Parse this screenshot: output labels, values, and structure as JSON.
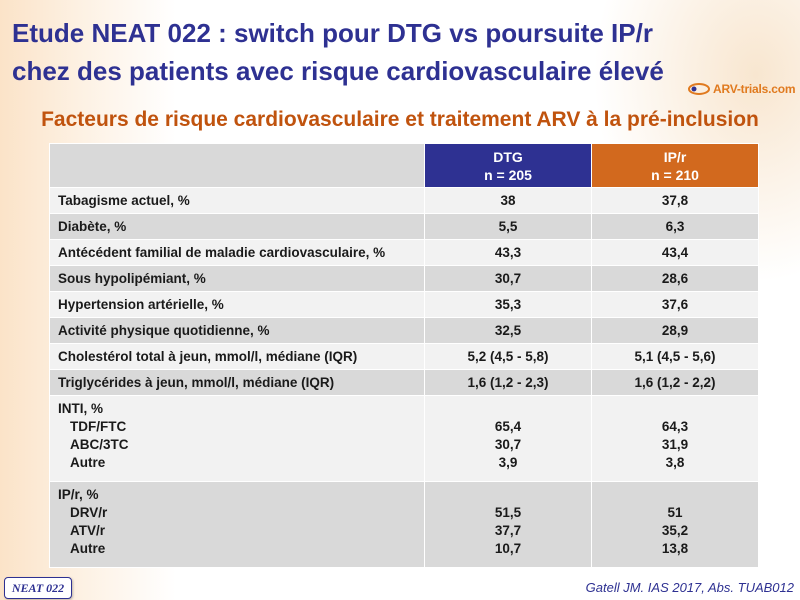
{
  "title": "Etude NEAT 022 : switch pour DTG vs poursuite IP/r chez des patients avec risque cardiovasculaire élevé",
  "logo_text": "ARV-trials.com",
  "subtitle": "Facteurs de risque cardiovasculaire et traitement ARV à la pré-inclusion",
  "table": {
    "columns": [
      {
        "name": "DTG",
        "n": "n = 205",
        "color": "#2e3192"
      },
      {
        "name": "IP/r",
        "n": "n = 210",
        "color": "#d2691e"
      }
    ],
    "rows": [
      {
        "label": "Tabagisme actuel, %",
        "dtg": "38",
        "ipr": "37,8"
      },
      {
        "label": "Diabète, %",
        "dtg": "5,5",
        "ipr": "6,3"
      },
      {
        "label": "Antécédent familial de maladie cardiovasculaire, %",
        "dtg": "43,3",
        "ipr": "43,4"
      },
      {
        "label": "Sous hypolipémiant, %",
        "dtg": "30,7",
        "ipr": "28,6"
      },
      {
        "label": "Hypertension artérielle, %",
        "dtg": "35,3",
        "ipr": "37,6"
      },
      {
        "label": "Activité physique quotidienne, %",
        "dtg": "32,5",
        "ipr": "28,9"
      },
      {
        "label": "Cholestérol total à jeun, mmol/l, médiane (IQR)",
        "dtg": "5,2 (4,5 - 5,8)",
        "ipr": "5,1 (4,5 - 5,6)"
      },
      {
        "label": "Triglycérides à jeun, mmol/l, médiane (IQR)",
        "dtg": "1,6 (1,2 - 2,3)",
        "ipr": "1,6 (1,2 - 2,2)"
      }
    ],
    "groups": [
      {
        "label": "INTI, %",
        "items": [
          {
            "label": "TDF/FTC",
            "dtg": "65,4",
            "ipr": "64,3"
          },
          {
            "label": "ABC/3TC",
            "dtg": "30,7",
            "ipr": "31,9"
          },
          {
            "label": "Autre",
            "dtg": "3,9",
            "ipr": "3,8"
          }
        ]
      },
      {
        "label": "IP/r, %",
        "items": [
          {
            "label": "DRV/r",
            "dtg": "51,5",
            "ipr": "51"
          },
          {
            "label": "ATV/r",
            "dtg": "37,7",
            "ipr": "35,2"
          },
          {
            "label": "Autre",
            "dtg": "10,7",
            "ipr": "13,8"
          }
        ]
      }
    ]
  },
  "badge": "NEAT 022",
  "citation": "Gatell JM. IAS 2017, Abs. TUAB012"
}
